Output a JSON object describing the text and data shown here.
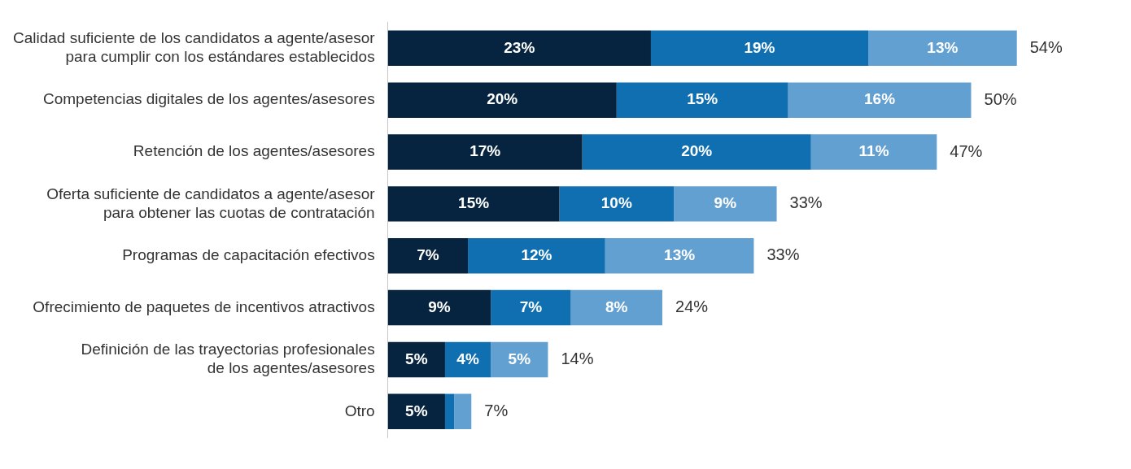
{
  "chart_data": {
    "type": "bar",
    "orientation": "horizontal",
    "stacked": true,
    "categories": [
      "Calidad suficiente de los candidatos a agente/asesor\npara cumplir con los estándares establecidos",
      "Competencias digitales de los agentes/asesores",
      "Retención de los agentes/asesores",
      "Oferta suficiente de candidatos a agente/asesor\npara obtener las cuotas de contratación",
      "Programas de capacitación efectivos",
      "Ofrecimiento de paquetes de incentivos atractivos",
      "Definición de las trayectorias profesionales\nde los agentes/asesores",
      "Otro"
    ],
    "series": [
      {
        "color": "#06243f",
        "values": [
          23,
          20,
          17,
          15,
          7,
          9,
          5,
          5
        ],
        "value_labels": [
          "23%",
          "20%",
          "17%",
          "15%",
          "7%",
          "9%",
          "5%",
          "5%"
        ]
      },
      {
        "color": "#0f6fb1",
        "values": [
          19,
          15,
          20,
          10,
          12,
          7,
          4,
          0.8
        ],
        "value_labels": [
          "19%",
          "15%",
          "20%",
          "10%",
          "12%",
          "7%",
          "4%",
          null
        ]
      },
      {
        "color": "#63a0d2",
        "values": [
          13,
          16,
          11,
          9,
          13,
          8,
          5,
          1.5
        ],
        "value_labels": [
          "13%",
          "16%",
          "11%",
          "9%",
          "13%",
          "8%",
          "5%",
          null
        ]
      }
    ],
    "totals": [
      "54%",
      "50%",
      "47%",
      "33%",
      "33%",
      "24%",
      "14%",
      "7%"
    ],
    "grid": false,
    "legend": false,
    "tick_labels": "y"
  }
}
